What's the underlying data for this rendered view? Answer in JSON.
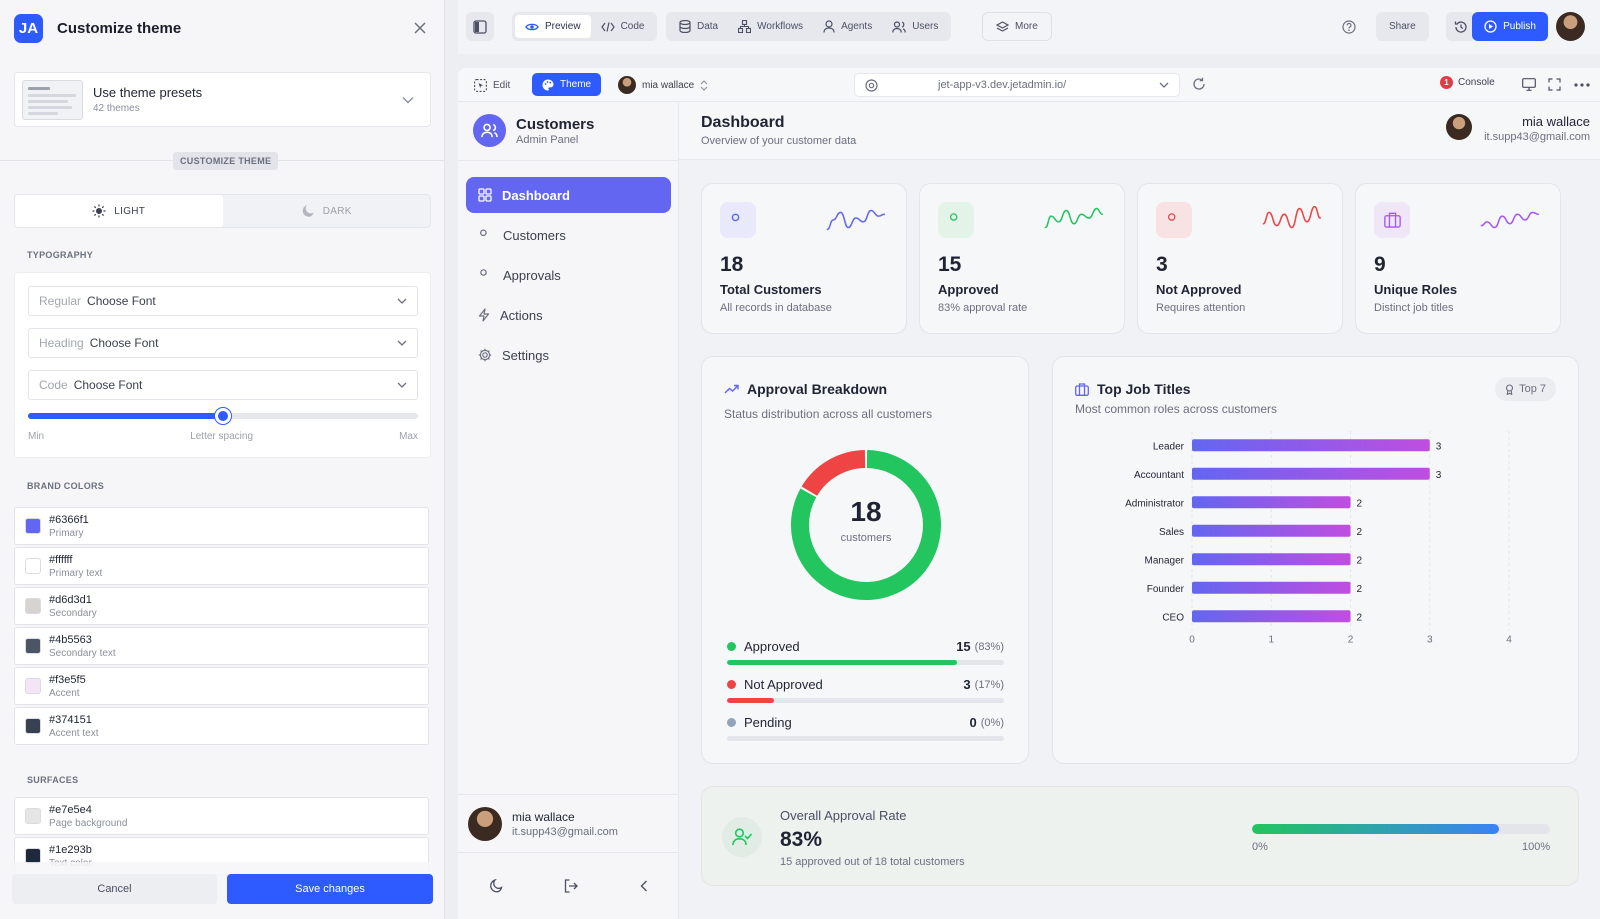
{
  "theme_panel": {
    "logo": "JA",
    "title": "Customize theme",
    "preset": {
      "name": "Use theme presets",
      "count": "42 themes"
    },
    "badge": "CUSTOMIZE THEME",
    "modes": {
      "light": "LIGHT",
      "dark": "DARK",
      "selected": "light"
    },
    "typography": {
      "label": "TYPOGRAPHY",
      "regular": {
        "label": "Regular",
        "value": "Choose Font"
      },
      "heading": {
        "label": "Heading",
        "value": "Choose Font"
      },
      "code": {
        "label": "Code",
        "value": "Choose Font"
      },
      "letter_spacing": {
        "min": "Min",
        "label": "Letter spacing",
        "max": "Max",
        "value": 0.5
      }
    },
    "brand_colors": {
      "label": "BRAND COLORS",
      "items": [
        {
          "hex": "#6366f1",
          "name": "Primary"
        },
        {
          "hex": "#ffffff",
          "name": "Primary text"
        },
        {
          "hex": "#d6d3d1",
          "name": "Secondary"
        },
        {
          "hex": "#4b5563",
          "name": "Secondary text"
        },
        {
          "hex": "#f3e5f5",
          "name": "Accent"
        },
        {
          "hex": "#374151",
          "name": "Accent text"
        }
      ]
    },
    "surfaces": {
      "label": "SURFACES",
      "items": [
        {
          "hex": "#e7e5e4",
          "name": "Page background"
        },
        {
          "hex": "#1e293b",
          "name": "Text color"
        }
      ]
    },
    "cancel_label": "Cancel",
    "save_label": "Save changes"
  },
  "topbar": {
    "preview": "Preview",
    "code": "Code",
    "data": "Data",
    "workflows": "Workflows",
    "agents": "Agents",
    "users": "Users",
    "more": "More",
    "share": "Share",
    "publish": "Publish"
  },
  "app_bar": {
    "edit": "Edit",
    "theme": "Theme",
    "user": "mia wallace",
    "url": "jet-app-v3.dev.jetadmin.io/",
    "console": "Console",
    "console_count": "1"
  },
  "sidebar": {
    "title": "Customers",
    "subtitle": "Admin Panel",
    "items": [
      {
        "label": "Dashboard",
        "icon": "grid-icon"
      },
      {
        "label": "Customers",
        "icon": "users-icon"
      },
      {
        "label": "Approvals",
        "icon": "user-check-icon"
      },
      {
        "label": "Actions",
        "icon": "bolt-icon"
      },
      {
        "label": "Settings",
        "icon": "gear-icon"
      }
    ],
    "user_name": "mia wallace",
    "user_email": "it.supp43@gmail.com"
  },
  "main": {
    "title": "Dashboard",
    "subtitle": "Overview of your customer data",
    "user_name": "mia wallace",
    "user_email": "it.supp43@gmail.com",
    "stats": [
      {
        "value": "18",
        "label": "Total Customers",
        "sub": "All records in database",
        "color": "#6366f1",
        "bg": "#e8e9fb"
      },
      {
        "value": "15",
        "label": "Approved",
        "sub": "83% approval rate",
        "color": "#22c55e",
        "bg": "#e3f3e8"
      },
      {
        "value": "3",
        "label": "Not Approved",
        "sub": "Requires attention",
        "color": "#ef4444",
        "bg": "#f8e3e4"
      },
      {
        "value": "9",
        "label": "Unique Roles",
        "sub": "Distinct job titles",
        "color": "#a855f7",
        "bg": "#efe6f8"
      }
    ],
    "approval": {
      "title": "Approval Breakdown",
      "subtitle": "Status distribution across all customers",
      "center_value": "18",
      "center_label": "customers",
      "items": [
        {
          "label": "Approved",
          "value": "15",
          "pct": "(83%)",
          "fraction": 0.83,
          "color": "#22c55e"
        },
        {
          "label": "Not Approved",
          "value": "3",
          "pct": "(17%)",
          "fraction": 0.17,
          "color": "#ef4444"
        },
        {
          "label": "Pending",
          "value": "0",
          "pct": "(0%)",
          "fraction": 0,
          "color": "#94a3b8"
        }
      ]
    },
    "jobs": {
      "title": "Top Job Titles",
      "subtitle": "Most common roles across customers",
      "badge": "Top 7"
    },
    "rate": {
      "label": "Overall Approval Rate",
      "value": "83%",
      "sub": "15 approved out of 18 total customers",
      "fraction": 0.83,
      "min_label": "0%",
      "max_label": "100%"
    }
  },
  "chart_data": [
    {
      "type": "pie",
      "categories": [
        "Approved",
        "Not Approved",
        "Pending"
      ],
      "values": [
        15,
        3,
        0
      ],
      "colors": [
        "#22c55e",
        "#ef4444",
        "#94a3b8"
      ]
    },
    {
      "type": "bar",
      "orientation": "horizontal",
      "categories": [
        "Leader",
        "Accountant",
        "Administrator",
        "Sales",
        "Manager",
        "Founder",
        "CEO"
      ],
      "values": [
        3,
        3,
        2,
        2,
        2,
        2,
        2
      ],
      "xticks": [
        "0",
        "1",
        "2",
        "3",
        "4"
      ],
      "xlim": [
        0,
        4
      ],
      "grid": true,
      "color": "#6366f1"
    }
  ]
}
